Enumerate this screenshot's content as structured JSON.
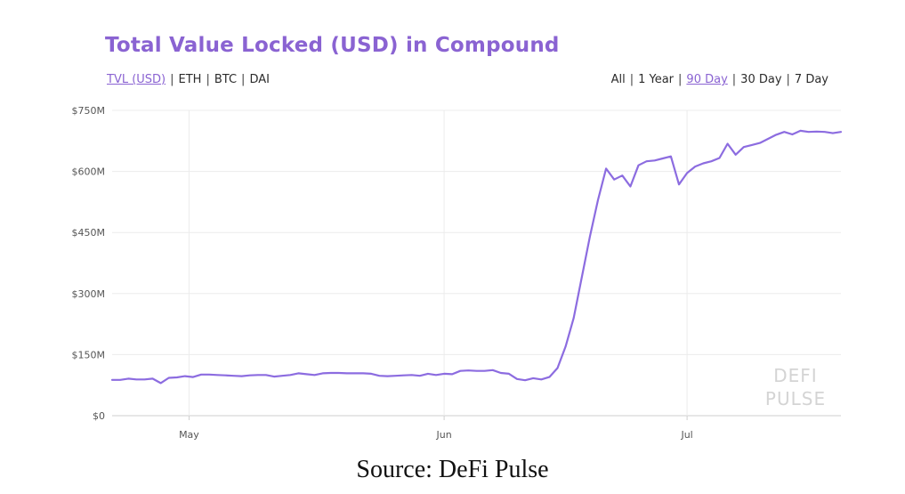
{
  "chart_data": {
    "type": "line",
    "title": "Total Value Locked (USD) in Compound",
    "metric_tabs": [
      "TVL (USD)",
      "ETH",
      "BTC",
      "DAI"
    ],
    "metric_active": "TVL (USD)",
    "range_tabs": [
      "All",
      "1 Year",
      "90 Day",
      "30 Day",
      "7 Day"
    ],
    "range_active": "90 Day",
    "xlabel": "",
    "ylabel": "",
    "y_unit": "USD (millions)",
    "yticks": [
      0,
      150,
      300,
      450,
      600,
      750
    ],
    "ytick_labels": [
      "$0",
      "$150M",
      "$300M",
      "$450M",
      "$600M",
      "$750M"
    ],
    "ylim": [
      0,
      750
    ],
    "x_domain_days": [
      0,
      90
    ],
    "xticks": [
      {
        "day": 9.5,
        "label": "May"
      },
      {
        "day": 41,
        "label": "Jun"
      },
      {
        "day": 71,
        "label": "Jul"
      }
    ],
    "grid": true,
    "watermark": [
      "DEFI",
      "PULSE"
    ],
    "series": [
      {
        "color": "#8c6ce0",
        "x": [
          0,
          1,
          2,
          3,
          4,
          5,
          6,
          7,
          8,
          9,
          10,
          11,
          12,
          13,
          14,
          15,
          16,
          17,
          18,
          19,
          20,
          21,
          22,
          23,
          24,
          25,
          26,
          27,
          28,
          29,
          30,
          31,
          32,
          33,
          34,
          35,
          36,
          37,
          38,
          39,
          40,
          41,
          42,
          43,
          44,
          45,
          46,
          47,
          48,
          49,
          50,
          51,
          52,
          53,
          54,
          55,
          56,
          57,
          58,
          59,
          60,
          61,
          62,
          63,
          64,
          65,
          66,
          67,
          68,
          69,
          70,
          71,
          72,
          73,
          74,
          75,
          76,
          77,
          78,
          79,
          80,
          81,
          82,
          83,
          84,
          85,
          86,
          87,
          88,
          89,
          90
        ],
        "values": [
          88,
          88,
          91,
          89,
          89,
          91,
          80,
          93,
          94,
          97,
          95,
          101,
          101,
          100,
          99,
          98,
          97,
          99,
          100,
          100,
          96,
          98,
          100,
          104,
          102,
          100,
          104,
          105,
          105,
          104,
          104,
          104,
          103,
          98,
          97,
          98,
          99,
          100,
          98,
          103,
          100,
          103,
          102,
          110,
          111,
          110,
          110,
          112,
          105,
          103,
          90,
          87,
          92,
          89,
          95,
          117,
          170,
          240,
          340,
          440,
          530,
          607,
          580,
          590,
          563,
          615,
          625,
          627,
          632,
          637,
          568,
          596,
          612,
          620,
          625,
          633,
          668,
          641,
          660,
          665,
          670,
          680,
          690,
          697,
          691,
          700,
          697,
          698,
          697,
          694,
          697
        ]
      }
    ]
  },
  "source": "Source: DeFi Pulse"
}
